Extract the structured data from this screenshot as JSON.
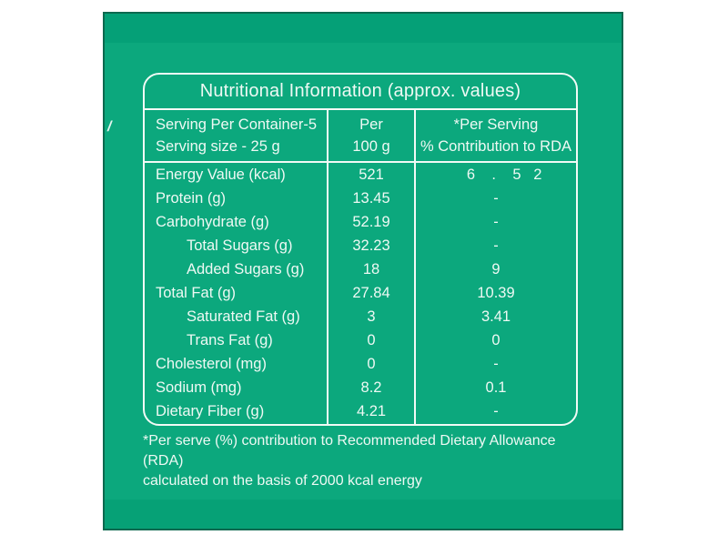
{
  "colors": {
    "panel_green": "#0ca87d",
    "panel_green_dark_band": "#05a077",
    "line_white": "#f2faf6",
    "text_white": "#eef9f4"
  },
  "label": {
    "title": "Nutritional Information (approx. values)",
    "header": {
      "col1_line1": "Serving Per Container-5",
      "col1_line2": "Serving size - 25 g",
      "col2_line1": "Per",
      "col2_line2": "100 g",
      "col3_line1": "*Per Serving",
      "col3_line2": "% Contribution to RDA"
    },
    "rows": [
      {
        "label": "Energy Value (kcal)",
        "per_100g": "521",
        "per_serving_rda": "    6    .    5   2",
        "indent": false
      },
      {
        "label": "Protein (g)",
        "per_100g": "13.45",
        "per_serving_rda": "-",
        "indent": false
      },
      {
        "label": "Carbohydrate (g)",
        "per_100g": "52.19",
        "per_serving_rda": "-",
        "indent": false
      },
      {
        "label": "Total Sugars (g)",
        "per_100g": "32.23",
        "per_serving_rda": "-",
        "indent": true
      },
      {
        "label": "Added Sugars (g)",
        "per_100g": "18",
        "per_serving_rda": "9",
        "indent": true
      },
      {
        "label": "Total Fat (g)",
        "per_100g": "27.84",
        "per_serving_rda": "10.39",
        "indent": false
      },
      {
        "label": "Saturated Fat (g)",
        "per_100g": "3",
        "per_serving_rda": "3.41",
        "indent": true
      },
      {
        "label": "Trans Fat (g)",
        "per_100g": "0",
        "per_serving_rda": "0",
        "indent": true
      },
      {
        "label": "Cholesterol (mg)",
        "per_100g": "0",
        "per_serving_rda": "-",
        "indent": false
      },
      {
        "label": "Sodium (mg)",
        "per_100g": "8.2",
        "per_serving_rda": "0.1",
        "indent": false
      },
      {
        "label": "Dietary Fiber (g)",
        "per_100g": "4.21",
        "per_serving_rda": "-",
        "indent": false
      }
    ],
    "footnote_line1": "*Per serve (%) contribution to Recommended Dietary Allowance (RDA)",
    "footnote_line2": "calculated on the basis of 2000 kcal energy",
    "stray_mark": "/"
  }
}
